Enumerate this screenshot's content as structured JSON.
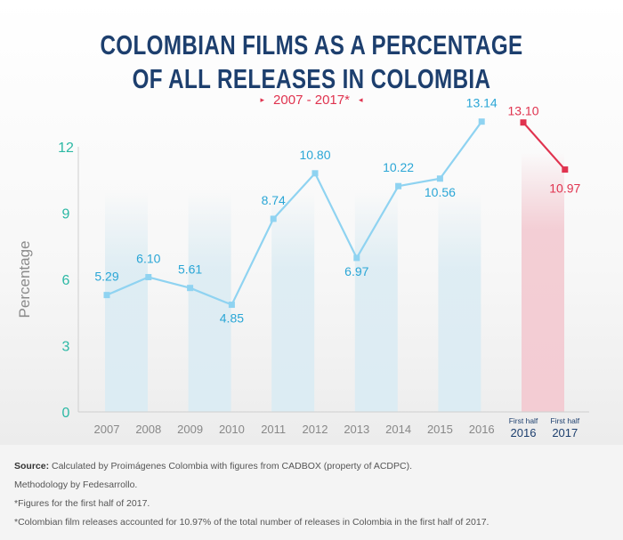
{
  "title": {
    "line1": "COLOMBIAN FILMS AS A PERCENTAGE",
    "line2": "OF ALL RELEASES IN COLOMBIA"
  },
  "subtitle": {
    "range": "2007 - 2017*",
    "arrow_left": "▸",
    "arrow_right": "◂"
  },
  "chart_data": {
    "type": "line",
    "ylabel": "Percentage",
    "ylim": [
      0,
      12
    ],
    "yticks": [
      0,
      3,
      6,
      9,
      12
    ],
    "categories": [
      "2007",
      "2008",
      "2009",
      "2010",
      "2011",
      "2012",
      "2013",
      "2014",
      "2015",
      "2016",
      "First half|2016",
      "First half|2017"
    ],
    "series": [
      {
        "color": "#8fd3f1",
        "x": [
          "2007",
          "2008",
          "2009",
          "2010",
          "2011",
          "2012",
          "2013",
          "2014",
          "2015",
          "2016"
        ],
        "values": [
          5.29,
          6.1,
          5.61,
          4.85,
          8.74,
          10.8,
          6.97,
          10.22,
          10.56,
          13.14
        ],
        "labels": [
          "5.29",
          "6.10",
          "5.61",
          "4.85",
          "8.74",
          "10.80",
          "6.97",
          "10.22",
          "10.56",
          "13.14"
        ]
      },
      {
        "color": "#e0334f",
        "x": [
          "First half|2016",
          "First half|2017"
        ],
        "values": [
          13.1,
          10.97
        ],
        "labels": [
          "13.10",
          "10.97"
        ]
      }
    ],
    "colors": {
      "ytick": "#2bb8a4",
      "xtick": "#888888",
      "xtick_half": "#1d3f6e",
      "label_blue": "#2aa6d6",
      "label_red": "#e0334f",
      "column_blue": "#dcecf3",
      "column_red": "#f3ccd3"
    }
  },
  "footer": {
    "source_label": "Source:",
    "source_text": " Calculated by Proimágenes Colombia with figures from CADBOX (property of ACDPC).",
    "methodology": "Methodology by Fedesarrollo.",
    "note1": "*Figures for the first half of 2017.",
    "note2": "*Colombian film releases accounted for 10.97% of the total number of releases in Colombia in the first half of 2017."
  }
}
